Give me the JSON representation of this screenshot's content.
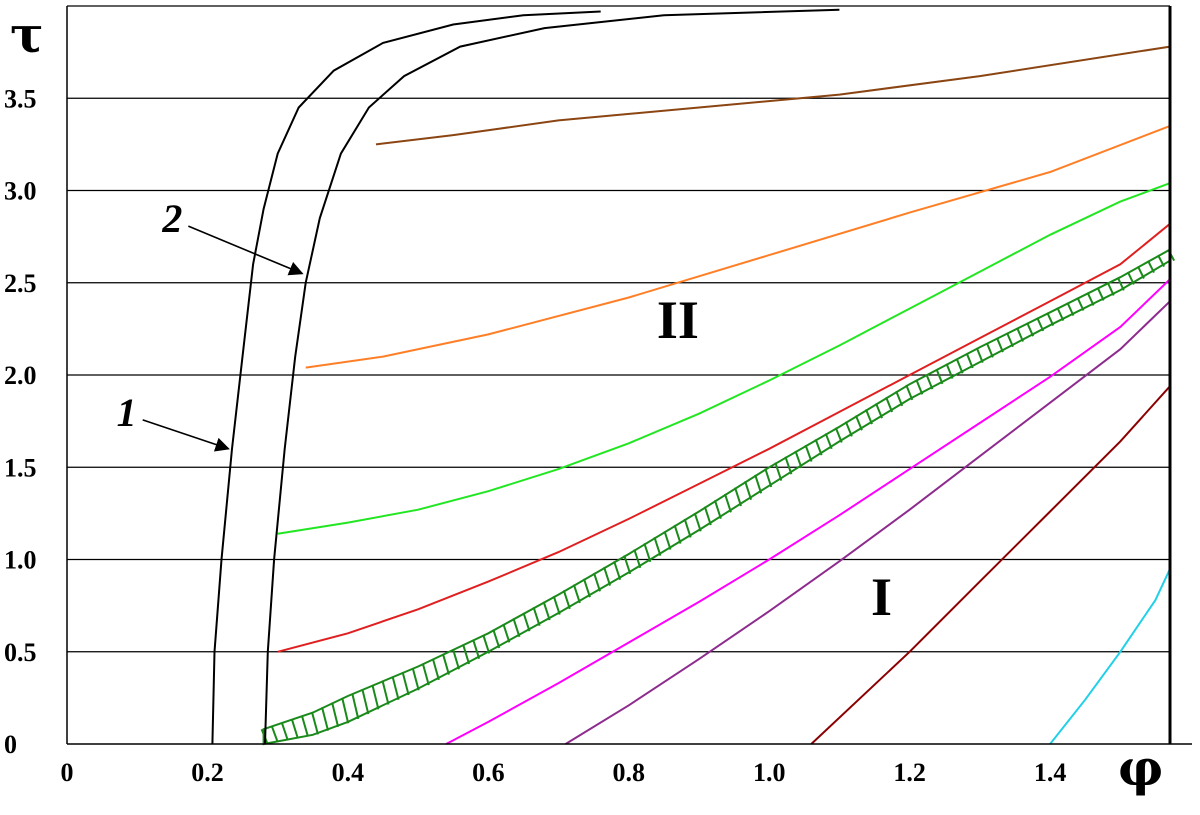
{
  "chart_data": {
    "type": "line",
    "xlabel": "φ",
    "ylabel": "τ",
    "xlim": [
      0,
      1.5708
    ],
    "ylim": [
      0,
      4.0
    ],
    "x_ticks": [
      {
        "value": 0,
        "label": "0"
      },
      {
        "value": 0.2,
        "label": "0.2"
      },
      {
        "value": 0.4,
        "label": "0.4"
      },
      {
        "value": 0.6,
        "label": "0.6"
      },
      {
        "value": 0.8,
        "label": "0.8"
      },
      {
        "value": 1.0,
        "label": "1.0"
      },
      {
        "value": 1.2,
        "label": "1.2"
      },
      {
        "value": 1.4,
        "label": "1.4"
      }
    ],
    "y_ticks": [
      {
        "value": 0,
        "label": "0"
      },
      {
        "value": 0.5,
        "label": "0.5"
      },
      {
        "value": 1.0,
        "label": "1.0"
      },
      {
        "value": 1.5,
        "label": "1.5"
      },
      {
        "value": 2.0,
        "label": "2.0"
      },
      {
        "value": 2.5,
        "label": "2.5"
      },
      {
        "value": 3.0,
        "label": "3.0"
      },
      {
        "value": 3.5,
        "label": "3.5"
      }
    ],
    "grid": "horizontal",
    "region_labels": [
      {
        "text": "II",
        "x": 0.87,
        "y": 2.2
      },
      {
        "text": "I",
        "x": 1.16,
        "y": 0.7
      }
    ],
    "curve_labels": [
      {
        "text": "1",
        "x": 0.085,
        "y": 1.8,
        "target_x": 0.23,
        "target_y": 1.6
      },
      {
        "text": "2",
        "x": 0.15,
        "y": 2.85,
        "target_x": 0.335,
        "target_y": 2.55
      }
    ],
    "boundary_curves": [
      {
        "label": "1",
        "color": "#000000",
        "x": [
          0.207,
          0.21,
          0.22,
          0.235,
          0.25,
          0.265,
          0.28,
          0.3,
          0.33,
          0.38,
          0.45,
          0.55,
          0.65,
          0.76
        ],
        "y": [
          0,
          0.5,
          1.0,
          1.6,
          2.1,
          2.6,
          2.9,
          3.2,
          3.45,
          3.65,
          3.8,
          3.9,
          3.95,
          3.97
        ]
      },
      {
        "label": "2",
        "color": "#000000",
        "x": [
          0.282,
          0.286,
          0.295,
          0.31,
          0.325,
          0.34,
          0.36,
          0.39,
          0.43,
          0.48,
          0.56,
          0.68,
          0.85,
          1.1
        ],
        "y": [
          0,
          0.5,
          1.0,
          1.6,
          2.1,
          2.5,
          2.85,
          3.2,
          3.45,
          3.62,
          3.78,
          3.88,
          3.95,
          3.98
        ]
      }
    ],
    "series": [
      {
        "color": "#8B4513",
        "x": [
          0.44,
          0.55,
          0.7,
          0.9,
          1.1,
          1.3,
          1.571
        ],
        "y": [
          3.25,
          3.3,
          3.38,
          3.45,
          3.52,
          3.62,
          3.78
        ]
      },
      {
        "color": "#FF7F27",
        "x": [
          0.34,
          0.45,
          0.6,
          0.8,
          1.0,
          1.2,
          1.4,
          1.571
        ],
        "y": [
          2.04,
          2.1,
          2.22,
          2.42,
          2.65,
          2.88,
          3.1,
          3.35
        ]
      },
      {
        "color": "#22E622",
        "x": [
          0.3,
          0.4,
          0.5,
          0.6,
          0.7,
          0.8,
          0.9,
          1.0,
          1.1,
          1.2,
          1.3,
          1.4,
          1.5,
          1.571
        ],
        "y": [
          1.14,
          1.2,
          1.27,
          1.37,
          1.49,
          1.63,
          1.79,
          1.97,
          2.16,
          2.36,
          2.56,
          2.76,
          2.94,
          3.04
        ]
      },
      {
        "color": "#E02020",
        "x": [
          0.3,
          0.4,
          0.5,
          0.6,
          0.7,
          0.8,
          0.9,
          1.0,
          1.1,
          1.2,
          1.3,
          1.4,
          1.5,
          1.571
        ],
        "y": [
          0.5,
          0.6,
          0.73,
          0.88,
          1.04,
          1.22,
          1.41,
          1.6,
          1.8,
          2.0,
          2.2,
          2.4,
          2.6,
          2.82
        ]
      },
      {
        "color": "#FF00FF",
        "x": [
          0.54,
          0.6,
          0.7,
          0.8,
          0.9,
          1.0,
          1.1,
          1.2,
          1.3,
          1.4,
          1.5,
          1.571
        ],
        "y": [
          0,
          0.12,
          0.33,
          0.55,
          0.77,
          1.0,
          1.24,
          1.49,
          1.74,
          1.99,
          2.26,
          2.52
        ]
      },
      {
        "color": "#8E2B8E",
        "x": [
          0.71,
          0.8,
          0.9,
          1.0,
          1.1,
          1.2,
          1.3,
          1.4,
          1.5,
          1.571
        ],
        "y": [
          0,
          0.21,
          0.46,
          0.72,
          0.99,
          1.27,
          1.56,
          1.85,
          2.14,
          2.4
        ]
      },
      {
        "color": "#8B0000",
        "x": [
          1.06,
          1.2,
          1.3,
          1.4,
          1.5,
          1.571
        ],
        "y": [
          0,
          0.5,
          0.88,
          1.26,
          1.64,
          1.94
        ]
      },
      {
        "color": "#20D0E8",
        "x": [
          1.4,
          1.45,
          1.5,
          1.55,
          1.571
        ],
        "y": [
          0,
          0.24,
          0.5,
          0.78,
          0.95
        ]
      }
    ],
    "hatched_band": {
      "color": "#1A8A1A",
      "x": [
        0.28,
        0.35,
        0.4,
        0.5,
        0.6,
        0.7,
        0.8,
        0.9,
        1.0,
        1.1,
        1.2,
        1.3,
        1.4,
        1.5,
        1.571
      ],
      "y_lower": [
        0,
        0.05,
        0.12,
        0.3,
        0.5,
        0.71,
        0.93,
        1.16,
        1.4,
        1.64,
        1.87,
        2.07,
        2.27,
        2.46,
        2.62
      ],
      "y_upper": [
        0.08,
        0.17,
        0.26,
        0.42,
        0.6,
        0.81,
        1.03,
        1.26,
        1.5,
        1.72,
        1.95,
        2.15,
        2.34,
        2.53,
        2.68
      ]
    }
  }
}
